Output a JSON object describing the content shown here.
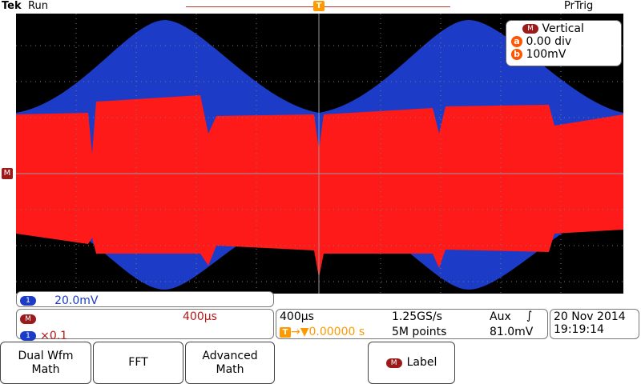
{
  "header": {
    "brand": "Tek",
    "run_state": "Run",
    "trigger_mode": "PrTrig"
  },
  "markers": {
    "math_marker": "M",
    "trigger_marker": "T"
  },
  "vertical_popup": {
    "title_badge": "M",
    "title": "Vertical",
    "a_badge": "a",
    "a_value": "0.00 div",
    "b_badge": "b",
    "b_value": "100mV"
  },
  "channel_readout": {
    "badge": "1",
    "scale": "20.0mV"
  },
  "math_readout": {
    "badge": "M",
    "timebase": "400µs",
    "source_badge": "1",
    "factor": "×0.1"
  },
  "timebase": {
    "time_div": "400µs",
    "sample_rate": "1.25GS/s",
    "trigger_source": "Aux",
    "trigger_slope": "∫",
    "trigger_badge": "T",
    "trigger_position": "0.00000 s",
    "record_length": "5M points",
    "trigger_level": "81.0mV"
  },
  "datetime": {
    "date": "20 Nov 2014",
    "time": "19:19:14"
  },
  "softkeys": [
    {
      "label": "Dual Wfm Math"
    },
    {
      "label": "FFT"
    },
    {
      "label": "Advanced Math"
    },
    {
      "badge": "M",
      "label": "Label"
    }
  ],
  "colors": {
    "screen_bg": "#000000",
    "grid": "#7a7a7a",
    "channel1": "#1c3cc8",
    "math": "#ff1a1a",
    "trigger": "#ff9900",
    "math_badge": "#9b1b1b"
  }
}
